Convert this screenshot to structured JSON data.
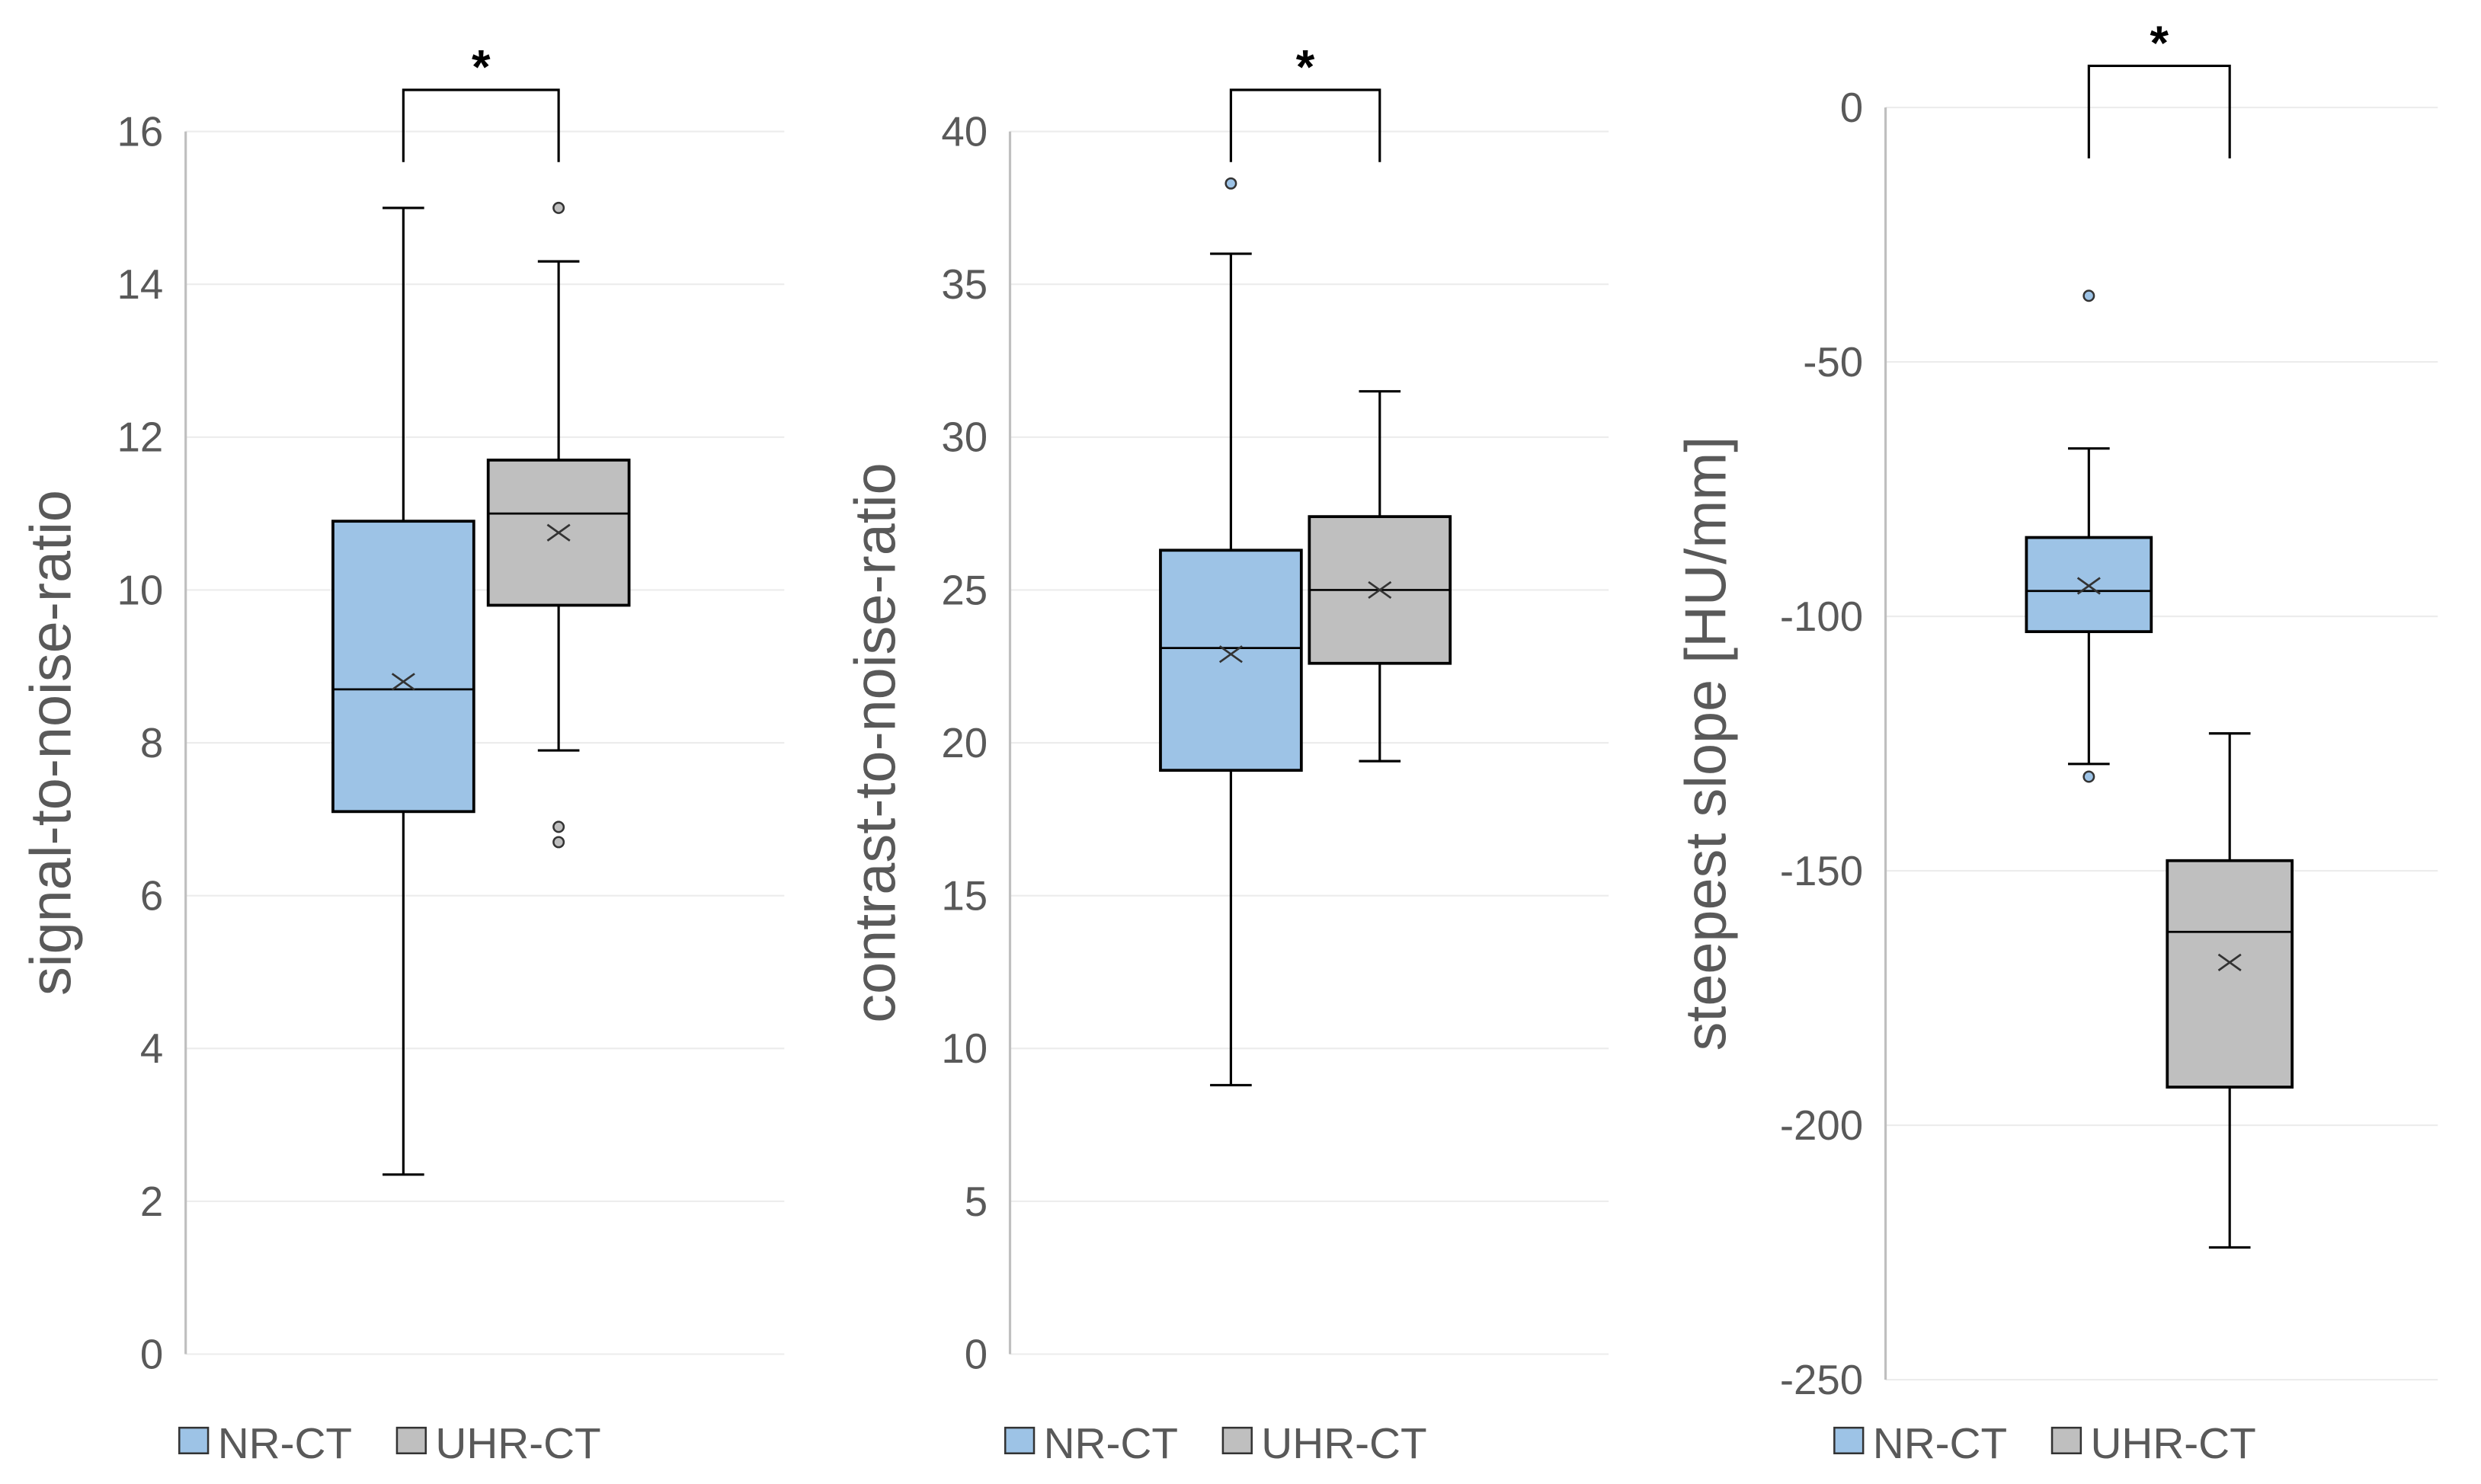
{
  "colors": {
    "NR-CT": "#9dc3e6",
    "UHR-CT": "#bfbfbf",
    "grid": "#ececec",
    "axis": "#bfbfbf"
  },
  "chart_data": [
    {
      "type": "box",
      "ylabel": "signal-to-noise-ratio",
      "ylim": [
        0,
        16
      ],
      "yticks": [
        0,
        2,
        4,
        6,
        8,
        10,
        12,
        14,
        16
      ],
      "legend": [
        "NR-CT",
        "UHR-CT"
      ],
      "legend_position": "bottom-left",
      "significance": "*",
      "bracket_y": 15.6,
      "series": [
        {
          "name": "NR-CT",
          "min": 2.35,
          "q1": 7.1,
          "median": 8.7,
          "q3": 10.9,
          "max": 15.0,
          "mean": 8.8,
          "outliers": []
        },
        {
          "name": "UHR-CT",
          "min": 7.9,
          "q1": 9.8,
          "median": 11.0,
          "q3": 11.7,
          "max": 14.3,
          "mean": 10.75,
          "outliers": [
            15.0,
            6.9,
            6.7
          ]
        }
      ]
    },
    {
      "type": "box",
      "ylabel": "contrast-to-noise-ratio",
      "ylim": [
        0,
        40
      ],
      "yticks": [
        0,
        5,
        10,
        15,
        20,
        25,
        30,
        35,
        40
      ],
      "legend": [
        "NR-CT",
        "UHR-CT"
      ],
      "legend_position": "bottom-left",
      "significance": "*",
      "bracket_y": 39,
      "series": [
        {
          "name": "NR-CT",
          "min": 8.8,
          "q1": 19.1,
          "median": 23.1,
          "q3": 26.3,
          "max": 36.0,
          "mean": 22.9,
          "outliers": [
            38.3
          ]
        },
        {
          "name": "UHR-CT",
          "min": 19.4,
          "q1": 22.6,
          "median": 25.0,
          "q3": 27.4,
          "max": 31.5,
          "mean": 25.0,
          "outliers": []
        }
      ]
    },
    {
      "type": "box",
      "ylabel": "steepest slope [HU/mm]",
      "ylim": [
        -250,
        0
      ],
      "yticks": [
        -250,
        -200,
        -150,
        -100,
        -50,
        0
      ],
      "legend": [
        "NR-CT",
        "UHR-CT"
      ],
      "legend_position": "bottom-left",
      "significance": "*",
      "bracket_y": -10,
      "series": [
        {
          "name": "NR-CT",
          "min": -129,
          "q1": -103,
          "median": -95,
          "q3": -84.5,
          "max": -67,
          "mean": -94,
          "outliers": [
            -37,
            -131.5
          ]
        },
        {
          "name": "UHR-CT",
          "min": -224,
          "q1": -192.5,
          "median": -162,
          "q3": -148,
          "max": -123,
          "mean": -168,
          "outliers": []
        }
      ]
    }
  ]
}
